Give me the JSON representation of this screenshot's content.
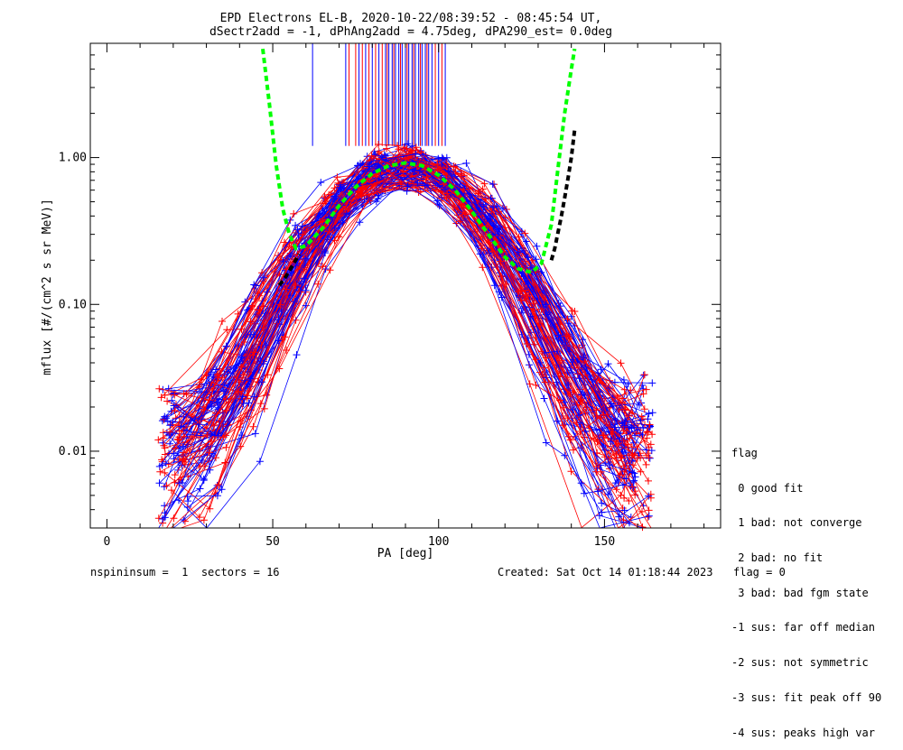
{
  "chart_data": {
    "type": "line",
    "title": "EPD Electrons EL-B, 2020-10-22/08:39:52 - 08:45:54 UT,",
    "subtitle": "dSectr2add = -1, dPhAng2add = 4.75deg, dPA290_est=   0.0deg",
    "xlabel": "PA [deg]",
    "ylabel": "mflux [#/(cm^2 s sr MeV)]",
    "xlim": [
      -5,
      185
    ],
    "ylim": [
      0.003,
      6.0
    ],
    "yscale": "log",
    "xticks": [
      0,
      50,
      100,
      150
    ],
    "xtick_labels": [
      "0",
      "50",
      "100",
      "150"
    ],
    "yticks": [
      0.01,
      0.1,
      1.0
    ],
    "ytick_labels": [
      "0.01",
      "0.10",
      "1.00"
    ],
    "grid": false,
    "series": [
      {
        "color": "#00ff00",
        "style": "dashed",
        "x": [
          47,
          49,
          51,
          53,
          55,
          57,
          60,
          65,
          70,
          75,
          80,
          85,
          90,
          95,
          100,
          105,
          110,
          115,
          120,
          124,
          128,
          131,
          134,
          136,
          138,
          140,
          141
        ],
        "y": [
          5.5,
          2.3,
          0.9,
          0.45,
          0.3,
          0.24,
          0.25,
          0.33,
          0.47,
          0.63,
          0.78,
          0.88,
          0.92,
          0.88,
          0.76,
          0.6,
          0.43,
          0.3,
          0.21,
          0.175,
          0.165,
          0.19,
          0.35,
          0.85,
          2.0,
          4.0,
          5.5
        ]
      },
      {
        "color": "#000000",
        "style": "dashed",
        "x": [
          52,
          54,
          56,
          58
        ],
        "y": [
          0.135,
          0.155,
          0.185,
          0.22
        ]
      },
      {
        "color": "#000000",
        "style": "dashed",
        "x": [
          134,
          135,
          136,
          137,
          138,
          139,
          140,
          141
        ],
        "y": [
          0.2,
          0.24,
          0.31,
          0.4,
          0.53,
          0.72,
          1.0,
          1.55
        ]
      }
    ],
    "scatter_series": [
      {
        "name": "blue",
        "color": "#0000ff"
      },
      {
        "name": "red",
        "color": "#ff0000"
      }
    ],
    "vertical_marks": {
      "y_range": [
        1.2,
        6.0
      ],
      "blue_x": [
        62,
        72,
        76,
        78,
        80,
        82,
        84,
        85,
        86,
        87,
        88,
        89,
        90,
        91,
        92,
        93,
        94,
        95,
        96,
        97,
        98,
        100,
        102
      ],
      "red_x": [
        73,
        75,
        77,
        79,
        81,
        83,
        84.5,
        86.5,
        88.5,
        90.5,
        92.5,
        94.5,
        96.5,
        99,
        101
      ]
    }
  },
  "legend": {
    "title": "flag",
    "items": [
      " 0 good fit",
      " 1 bad: not converge",
      " 2 bad: no fit",
      " 3 bad: bad fgm state",
      "-1 sus: far off median",
      "-2 sus: not symmetric",
      "-3 sus: fit peak off 90",
      "-4 sus: peaks high var"
    ]
  },
  "footer": {
    "left": "nspininsum =  1  sectors = 16",
    "created": "Created: Sat Oct 14 01:18:44 2023",
    "flag": "flag = 0"
  }
}
